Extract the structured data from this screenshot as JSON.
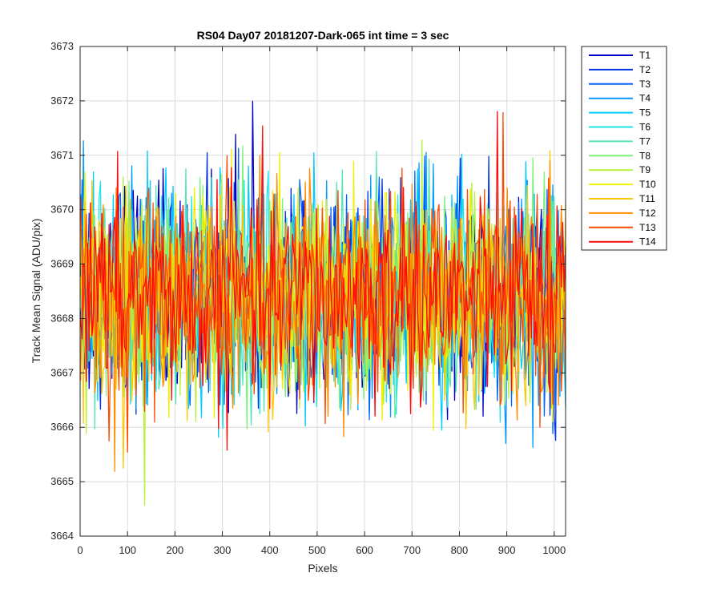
{
  "chart_data": {
    "type": "line",
    "title": "RS04 Day07 20181207-Dark-065 int time = 3 sec",
    "xlabel": "Pixels",
    "ylabel": "Track Mean Signal (ADU/pix)",
    "xlim": [
      0,
      1024
    ],
    "ylim": [
      3664,
      3673
    ],
    "xticks": [
      0,
      100,
      200,
      300,
      400,
      500,
      600,
      700,
      800,
      900,
      1000
    ],
    "yticks": [
      3664,
      3665,
      3666,
      3667,
      3668,
      3669,
      3670,
      3671,
      3672,
      3673
    ],
    "grid": true,
    "legend_position": "outside-top-right",
    "noise_profile": {
      "x_start": 1,
      "x_end": 1024,
      "mean": 3668.4,
      "typical_range": [
        3666.5,
        3670.5
      ],
      "min_observed": 3664.4,
      "max_observed": 3672.2
    },
    "series": [
      {
        "name": "T1",
        "color": "#0000c8",
        "mean": 3668.4,
        "spread": 0.95
      },
      {
        "name": "T2",
        "color": "#0033e6",
        "mean": 3668.4,
        "spread": 0.95
      },
      {
        "name": "T3",
        "color": "#0066ff",
        "mean": 3668.4,
        "spread": 0.95
      },
      {
        "name": "T4",
        "color": "#0099ff",
        "mean": 3668.4,
        "spread": 0.95
      },
      {
        "name": "T5",
        "color": "#00ccff",
        "mean": 3668.4,
        "spread": 0.95
      },
      {
        "name": "T6",
        "color": "#1ee6e6",
        "mean": 3668.4,
        "spread": 0.95
      },
      {
        "name": "T7",
        "color": "#55e6b4",
        "mean": 3668.4,
        "spread": 0.95
      },
      {
        "name": "T8",
        "color": "#7df07d",
        "mean": 3668.4,
        "spread": 0.95
      },
      {
        "name": "T9",
        "color": "#b9f03c",
        "mean": 3668.4,
        "spread": 0.95
      },
      {
        "name": "T10",
        "color": "#f0f000",
        "mean": 3668.4,
        "spread": 0.95
      },
      {
        "name": "T11",
        "color": "#ffc800",
        "mean": 3668.4,
        "spread": 0.95
      },
      {
        "name": "T12",
        "color": "#ff8c00",
        "mean": 3668.4,
        "spread": 0.95
      },
      {
        "name": "T13",
        "color": "#ff4b00",
        "mean": 3668.4,
        "spread": 0.95
      },
      {
        "name": "T14",
        "color": "#ff0a0a",
        "mean": 3668.4,
        "spread": 0.95
      }
    ]
  }
}
